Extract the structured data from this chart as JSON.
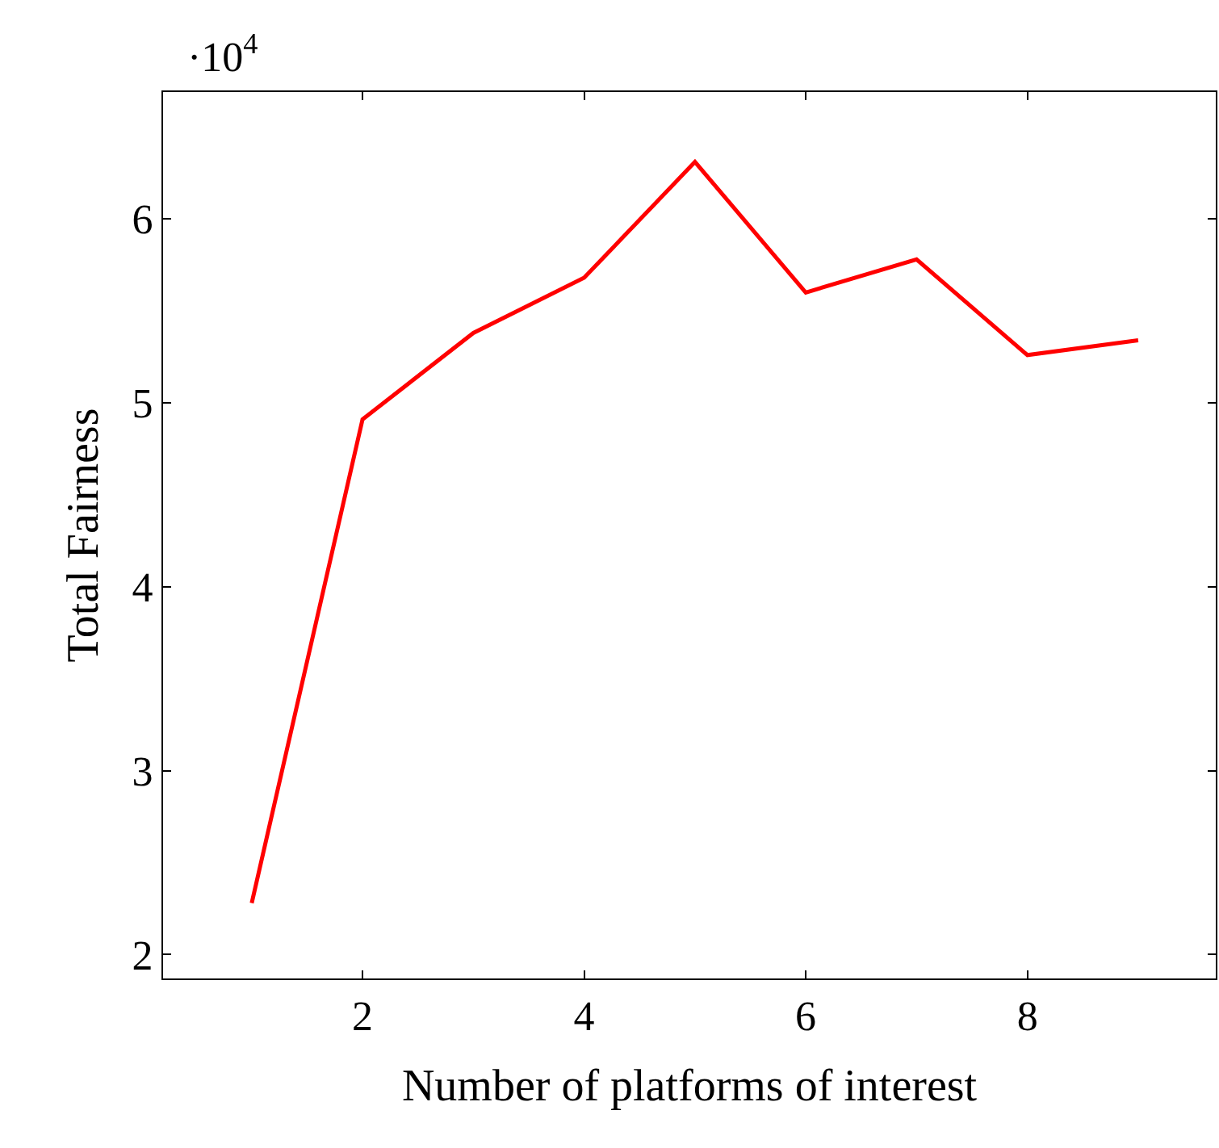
{
  "chart_data": {
    "type": "line",
    "xlabel": "Number of platforms of interest",
    "ylabel": "Total Fairness",
    "annotations": [
      "·10$^{4}$"
    ],
    "x": [
      1,
      2,
      3,
      4,
      5,
      6,
      7,
      8,
      9
    ],
    "series": [
      {
        "color": "#ff0000",
        "values": [
          2.28,
          4.91,
          5.38,
          5.68,
          6.31,
          5.6,
          5.78,
          5.26,
          5.34
        ]
      }
    ],
    "xlim": [
      0.2,
      9.7
    ],
    "xticks": [
      2,
      4,
      6,
      8
    ],
    "ylim": [
      1.87,
      6.69
    ],
    "yticks": [
      2,
      3,
      4,
      5,
      6
    ],
    "marker": "none",
    "line_style": "solid"
  }
}
